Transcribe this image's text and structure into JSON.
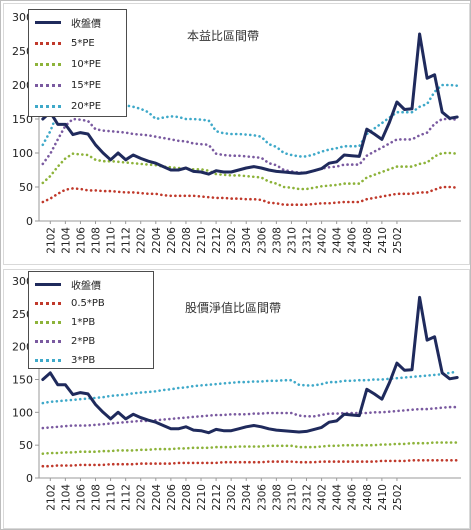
{
  "chart_data": [
    {
      "type": "line",
      "title": "本益比區間帶",
      "ylim": [
        0,
        300
      ],
      "yticks": [
        0,
        50,
        100,
        150,
        200,
        250,
        300
      ],
      "xticklabels": [
        "2102",
        "2104",
        "2106",
        "2108",
        "2110",
        "2112",
        "2202",
        "2204",
        "2206",
        "2208",
        "2210",
        "2212",
        "2302",
        "2304",
        "2306",
        "2308",
        "2310",
        "2312",
        "2402",
        "2404",
        "2406",
        "2408",
        "2410",
        "2502"
      ],
      "grid": false,
      "legend_position": "top-left",
      "series": [
        {
          "name": "收盤價",
          "style": "solid",
          "color": "#1f2a5c",
          "values": [
            150,
            160,
            142,
            142,
            127,
            130,
            128,
            112,
            100,
            90,
            100,
            90,
            97,
            92,
            88,
            85,
            80,
            75,
            75,
            78,
            73,
            72,
            69,
            74,
            72,
            72,
            75,
            78,
            80,
            78,
            75,
            73,
            72,
            71,
            70,
            71,
            74,
            77,
            85,
            87,
            97,
            96,
            95,
            135,
            128,
            120,
            145,
            175,
            164,
            165,
            275,
            210,
            215,
            160,
            151,
            153
          ]
        },
        {
          "name": "5*PE",
          "style": "dotted",
          "color": "#c0392b",
          "values": [
            28,
            33,
            40,
            46,
            48,
            47,
            45,
            45,
            44,
            44,
            43,
            42,
            42,
            41,
            40,
            40,
            38,
            37,
            37,
            37,
            37,
            36,
            35,
            34,
            34,
            33,
            33,
            32,
            32,
            31,
            27,
            26,
            24,
            24,
            24,
            24,
            25,
            26,
            26,
            27,
            28,
            28,
            28,
            32,
            34,
            36,
            38,
            40,
            40,
            40,
            42,
            42,
            46,
            50,
            50,
            49
          ]
        },
        {
          "name": "10*PE",
          "style": "dotted",
          "color": "#8db33a",
          "values": [
            56,
            66,
            80,
            92,
            99,
            98,
            97,
            90,
            88,
            88,
            87,
            86,
            85,
            84,
            83,
            82,
            80,
            79,
            78,
            77,
            76,
            76,
            74,
            69,
            68,
            67,
            67,
            66,
            65,
            64,
            58,
            55,
            50,
            49,
            47,
            47,
            49,
            51,
            52,
            53,
            55,
            55,
            55,
            64,
            68,
            72,
            76,
            80,
            80,
            80,
            84,
            86,
            95,
            100,
            100,
            99
          ]
        },
        {
          "name": "15*PE",
          "style": "dotted",
          "color": "#7a5aa0",
          "values": [
            84,
            99,
            120,
            140,
            150,
            149,
            147,
            135,
            133,
            132,
            131,
            130,
            128,
            127,
            126,
            124,
            122,
            120,
            118,
            117,
            114,
            113,
            112,
            99,
            97,
            96,
            96,
            95,
            94,
            93,
            85,
            82,
            75,
            73,
            71,
            71,
            74,
            77,
            79,
            80,
            83,
            83,
            83,
            96,
            102,
            108,
            114,
            120,
            120,
            120,
            126,
            130,
            143,
            150,
            150,
            149
          ]
        },
        {
          "name": "20*PE",
          "style": "dotted",
          "color": "#3fa9c9",
          "values": [
            112,
            132,
            160,
            175,
            178,
            177,
            176,
            175,
            173,
            172,
            171,
            170,
            168,
            165,
            160,
            150,
            152,
            154,
            153,
            150,
            150,
            149,
            148,
            132,
            129,
            128,
            128,
            127,
            126,
            124,
            113,
            109,
            100,
            97,
            95,
            95,
            98,
            102,
            105,
            107,
            110,
            110,
            110,
            128,
            136,
            144,
            152,
            160,
            160,
            160,
            168,
            172,
            190,
            200,
            200,
            199
          ]
        }
      ]
    },
    {
      "type": "line",
      "title": "股價淨值比區間帶",
      "ylim": [
        0,
        300
      ],
      "yticks": [
        0,
        50,
        100,
        150,
        200,
        250,
        300
      ],
      "xticklabels": [
        "2102",
        "2104",
        "2106",
        "2108",
        "2110",
        "2112",
        "2202",
        "2204",
        "2206",
        "2208",
        "2210",
        "2212",
        "2302",
        "2304",
        "2306",
        "2308",
        "2310",
        "2312",
        "2402",
        "2404",
        "2406",
        "2408",
        "2410",
        "2502"
      ],
      "grid": false,
      "legend_position": "top-left",
      "series": [
        {
          "name": "收盤價",
          "style": "solid",
          "color": "#1f2a5c",
          "values": [
            150,
            160,
            142,
            142,
            127,
            130,
            128,
            112,
            100,
            90,
            100,
            90,
            97,
            92,
            88,
            85,
            80,
            75,
            75,
            78,
            73,
            72,
            69,
            74,
            72,
            72,
            75,
            78,
            80,
            78,
            75,
            73,
            72,
            71,
            70,
            71,
            74,
            77,
            85,
            87,
            97,
            96,
            95,
            135,
            128,
            120,
            145,
            175,
            164,
            165,
            275,
            210,
            215,
            160,
            151,
            153
          ]
        },
        {
          "name": "0.5*PB",
          "style": "dotted",
          "color": "#c0392b",
          "values": [
            18,
            18,
            19,
            19,
            19,
            20,
            20,
            20,
            20,
            21,
            21,
            21,
            21,
            22,
            22,
            22,
            22,
            22,
            23,
            23,
            23,
            23,
            23,
            23,
            24,
            24,
            24,
            24,
            24,
            24,
            25,
            25,
            25,
            25,
            24,
            24,
            24,
            25,
            25,
            25,
            25,
            25,
            25,
            25,
            25,
            26,
            26,
            26,
            26,
            27,
            27,
            27,
            27,
            27,
            27,
            27
          ]
        },
        {
          "name": "1*PB",
          "style": "dotted",
          "color": "#8db33a",
          "values": [
            37,
            38,
            38,
            39,
            39,
            40,
            40,
            40,
            41,
            41,
            42,
            42,
            42,
            43,
            43,
            44,
            44,
            44,
            45,
            45,
            46,
            46,
            46,
            47,
            47,
            47,
            48,
            48,
            48,
            48,
            49,
            49,
            49,
            49,
            47,
            47,
            47,
            48,
            49,
            49,
            50,
            50,
            50,
            50,
            50,
            51,
            51,
            52,
            52,
            53,
            53,
            53,
            54,
            54,
            54,
            54
          ]
        },
        {
          "name": "2*PB",
          "style": "dotted",
          "color": "#7a5aa0",
          "values": [
            76,
            77,
            78,
            79,
            80,
            80,
            80,
            81,
            82,
            83,
            84,
            85,
            86,
            87,
            87,
            88,
            89,
            90,
            91,
            92,
            93,
            94,
            95,
            96,
            96,
            97,
            97,
            97,
            98,
            98,
            99,
            99,
            99,
            99,
            95,
            94,
            94,
            96,
            98,
            98,
            99,
            99,
            99,
            99,
            100,
            100,
            101,
            102,
            103,
            104,
            105,
            105,
            106,
            107,
            108,
            108
          ]
        },
        {
          "name": "3*PB",
          "style": "dotted",
          "color": "#3fa9c9",
          "values": [
            114,
            116,
            117,
            118,
            119,
            120,
            121,
            122,
            123,
            125,
            126,
            127,
            129,
            130,
            131,
            132,
            134,
            135,
            137,
            138,
            140,
            141,
            142,
            143,
            144,
            145,
            146,
            146,
            147,
            147,
            148,
            148,
            149,
            149,
            142,
            141,
            141,
            143,
            146,
            146,
            148,
            148,
            149,
            149,
            150,
            150,
            151,
            152,
            153,
            154,
            155,
            156,
            157,
            158,
            160,
            162
          ]
        }
      ]
    }
  ]
}
